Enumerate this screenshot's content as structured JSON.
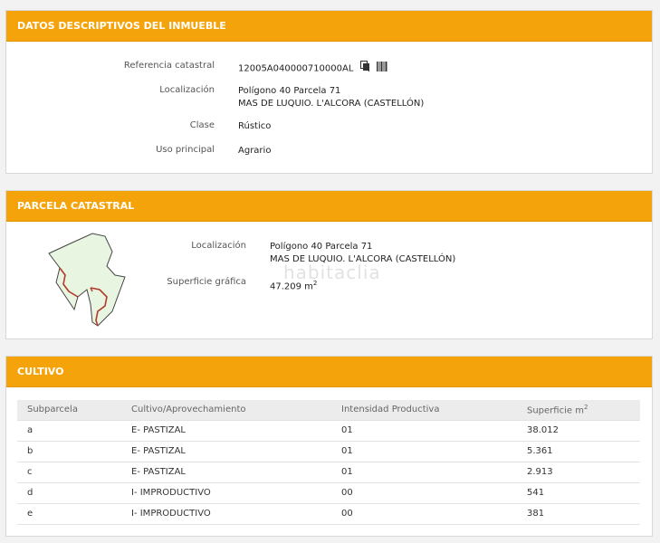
{
  "datos": {
    "header": "DATOS DESCRIPTIVOS DEL INMUEBLE",
    "referencia_label": "Referencia catastral",
    "referencia_value": "12005A040000710000AL",
    "localizacion_label": "Localización",
    "localizacion_line1": "Polígono 40 Parcela 71",
    "localizacion_line2": "MAS DE LUQUIO. L'ALCORA (CASTELLÓN)",
    "clase_label": "Clase",
    "clase_value": "Rústico",
    "uso_label": "Uso principal",
    "uso_value": "Agrario"
  },
  "parcela": {
    "header": "PARCELA CATASTRAL",
    "localizacion_label": "Localización",
    "localizacion_line1": "Polígono 40 Parcela 71",
    "localizacion_line2": "MAS DE LUQUIO. L'ALCORA (CASTELLÓN)",
    "superficie_label": "Superficie gráfica",
    "superficie_value": "47.209 m",
    "superficie_sup": "2",
    "watermark": "habitaclia"
  },
  "cultivo": {
    "header": "CULTIVO",
    "columns": [
      "Subparcela",
      "Cultivo/Aprovechamiento",
      "Intensidad Productiva",
      "Superficie m"
    ],
    "superficie_sup": "2",
    "rows": [
      [
        "a",
        "E- PASTIZAL",
        "01",
        "38.012"
      ],
      [
        "b",
        "E- PASTIZAL",
        "01",
        "5.361"
      ],
      [
        "c",
        "E- PASTIZAL",
        "01",
        "2.913"
      ],
      [
        "d",
        "I- IMPRODUCTIVO",
        "00",
        "541"
      ],
      [
        "e",
        "I- IMPRODUCTIVO",
        "00",
        "381"
      ]
    ]
  },
  "icons": [
    "copy-icon",
    "barcode-icon",
    "parcel-map-icon"
  ],
  "colors": {
    "accent": "#f5a30a",
    "parcel_fill": "#e8f5e0",
    "parcel_border": "#b33a2a"
  }
}
